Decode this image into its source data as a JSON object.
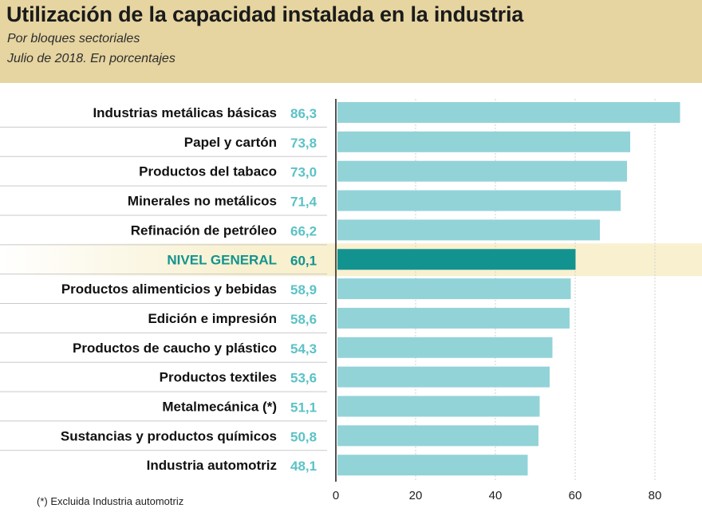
{
  "header": {
    "title": "Utilización de la capacidad instalada en la industria",
    "subtitle_1": "Por bloques sectoriales",
    "subtitle_2": "Julio de 2018. En porcentajes"
  },
  "footnote": "(*) Excluida Industria automotriz",
  "colors": {
    "header_bg": "#e6d5a1",
    "bar": "#92d3d8",
    "bar_highlight": "#13938f",
    "row_highlight_bg": "#f8f0cf",
    "value_text": "#5cc2c6",
    "highlight_text": "#13938f"
  },
  "chart_data": {
    "type": "bar",
    "orientation": "horizontal",
    "title": "Utilización de la capacidad instalada en la industria",
    "subtitle": "Por bloques sectoriales. Julio de 2018. En porcentajes",
    "xlabel": "",
    "ylabel": "",
    "xlim": [
      0,
      90
    ],
    "xticks": [
      0,
      20,
      40,
      60,
      80
    ],
    "grid": true,
    "highlight_category": "NIVEL GENERAL",
    "categories": [
      "Industrias metálicas básicas",
      "Papel y cartón",
      "Productos del tabaco",
      "Minerales no metálicos",
      "Refinación de petróleo",
      "NIVEL GENERAL",
      "Productos alimenticios y bebidas",
      "Edición e impresión",
      "Productos de caucho y plástico",
      "Productos textiles",
      "Metalmecánica (*)",
      "Sustancias y productos químicos",
      "Industria automotriz"
    ],
    "values": [
      86.3,
      73.8,
      73.0,
      71.4,
      66.2,
      60.1,
      58.9,
      58.6,
      54.3,
      53.6,
      51.1,
      50.8,
      48.1
    ],
    "value_labels": [
      "86,3",
      "73,8",
      "73,0",
      "71,4",
      "66,2",
      "60,1",
      "58,9",
      "58,6",
      "54,3",
      "53,6",
      "51,1",
      "50,8",
      "48,1"
    ]
  }
}
